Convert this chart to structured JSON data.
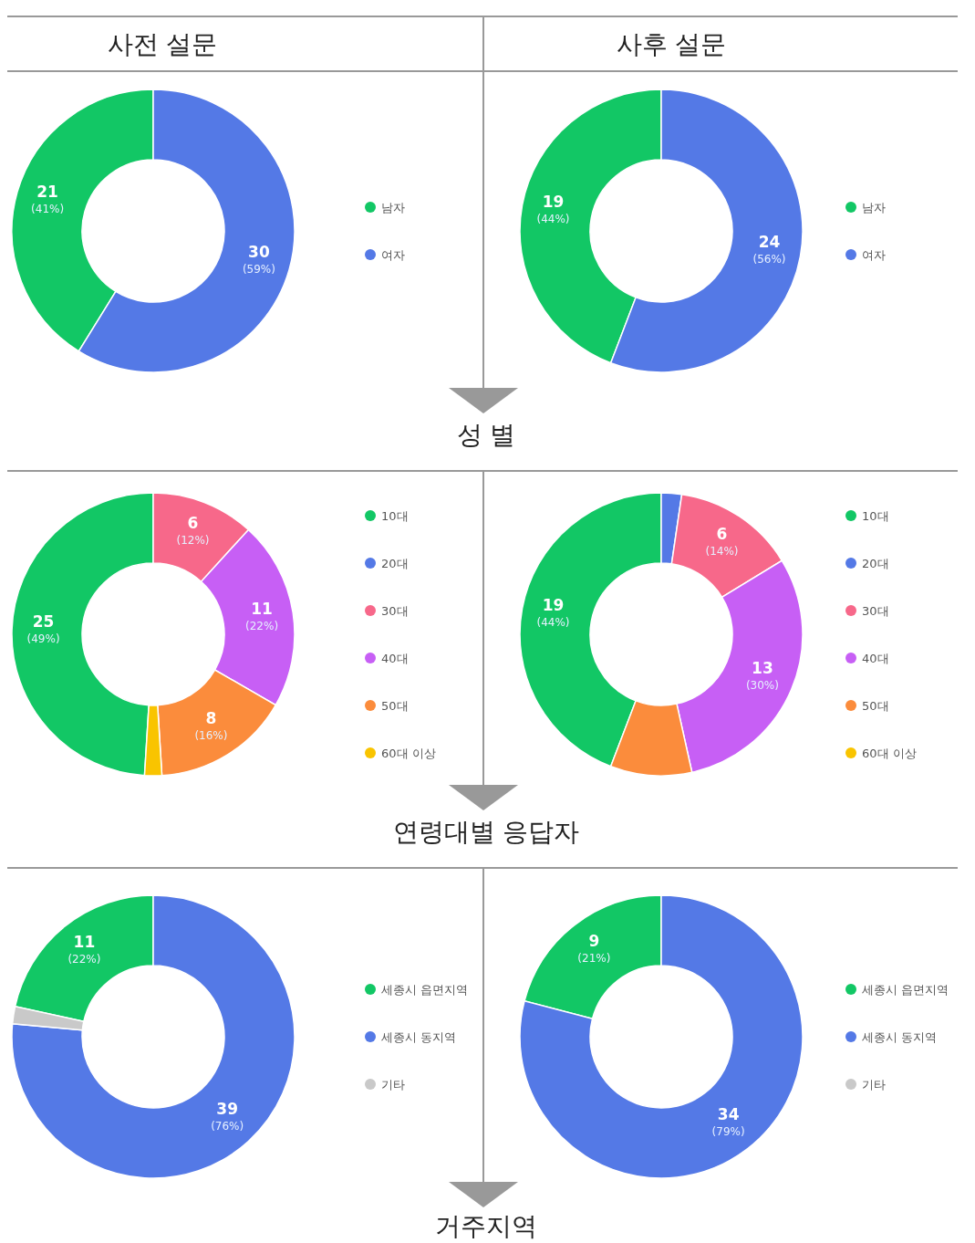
{
  "chart_data": [
    {
      "type": "donut",
      "title": "사전 설문",
      "annotations": [
        "성 별"
      ],
      "categories": [
        "남자",
        "여자"
      ],
      "values": [
        21,
        30
      ],
      "colors": [
        "#12c765",
        "#5479e6"
      ],
      "value_labels": [
        "21 (41%)",
        "30 (59%)"
      ],
      "legend": "right"
    },
    {
      "type": "donut",
      "title": "사후 설문",
      "categories": [
        "남자",
        "여자"
      ],
      "values": [
        19,
        24
      ],
      "colors": [
        "#12c765",
        "#5479e6"
      ],
      "value_labels": [
        "19 (44%)",
        "24 (56%)"
      ],
      "legend": "right"
    },
    {
      "type": "donut",
      "annotations": [
        "연령대별 응답자"
      ],
      "categories": [
        "10대",
        "20대",
        "30대",
        "40대",
        "50대",
        "60대 이상"
      ],
      "values": [
        25,
        0,
        6,
        11,
        8,
        1
      ],
      "colors": [
        "#12c765",
        "#5479e6",
        "#f7688a",
        "#c75ff5",
        "#fb8c3c",
        "#f9c400"
      ],
      "value_labels": [
        "25 (49%)",
        null,
        "6 (12%)",
        "11 (22%)",
        "8 (16%)",
        null
      ],
      "legend": "right"
    },
    {
      "type": "donut",
      "categories": [
        "10대",
        "20대",
        "30대",
        "40대",
        "50대",
        "60대 이상"
      ],
      "values": [
        19,
        1,
        6,
        13,
        4,
        0
      ],
      "colors": [
        "#12c765",
        "#5479e6",
        "#f7688a",
        "#c75ff5",
        "#fb8c3c",
        "#f9c400"
      ],
      "value_labels": [
        "19 (44%)",
        null,
        "6 (14%)",
        "13 (30%)",
        null,
        null
      ],
      "legend": "right"
    },
    {
      "type": "donut",
      "annotations": [
        "거주지역"
      ],
      "categories": [
        "세종시 읍면지역",
        "세종시 동지역",
        "기타"
      ],
      "values": [
        11,
        39,
        1
      ],
      "colors": [
        "#12c765",
        "#5479e6",
        "#c9c9c9"
      ],
      "value_labels": [
        "11 (22%)",
        "39 (76%)",
        null
      ],
      "legend": "right"
    },
    {
      "type": "donut",
      "categories": [
        "세종시 읍면지역",
        "세종시 동지역",
        "기타"
      ],
      "values": [
        9,
        34,
        0
      ],
      "colors": [
        "#12c765",
        "#5479e6",
        "#c9c9c9"
      ],
      "value_labels": [
        "9 (21%)",
        "34 (79%)",
        null
      ],
      "legend": "right"
    }
  ]
}
